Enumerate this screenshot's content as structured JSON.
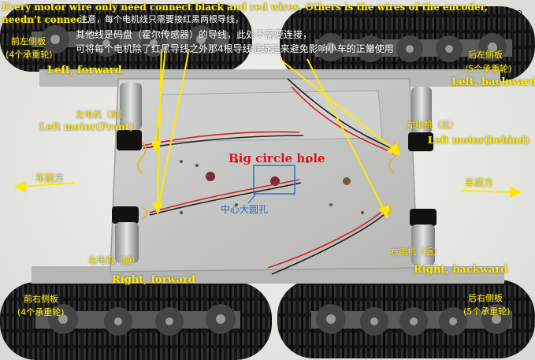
{
  "image_number": "039",
  "header": {
    "line1": "Every motor wire only need connect black and red wires. Others is the wires of the encoder,",
    "line2": "needn't connect.",
    "cn1": "注意，每个电机线只需要接红黑两根导线，",
    "cn2": "其他线是码盘（霍尔传感器）的导线，此处不需要连接，",
    "cn3": "可将每个电机除了红黑导线之外那4根导线缠绕起来避免影响小车的正常使用"
  },
  "labels": {
    "front_left_panel_cn": "前左侧板",
    "front_left_panel_sub": "(4个承重轮)",
    "left_forward": "Left, forward",
    "rear_left_panel_cn": "后左侧板",
    "rear_left_panel_sub": "(5个承重轮)",
    "left_backward": "Left, backward",
    "left_motor_front_cn": "左电机（前）",
    "left_motor_front": "Left motor(Front)",
    "left_motor_rear_cn": "左电机（后）",
    "left_motor_behind": "Left motor(behind)",
    "big_circle_hole": "Big circle hole",
    "center_hole_cn": "中心大圆孔",
    "car_front_cn": "车前方",
    "car_rear_cn": "车后方",
    "right_motor_front_cn": "右电机（前）",
    "right_forward": "Right, forward",
    "right_motor_rear_cn": "右电机（后）",
    "right_backward": "Right, backward",
    "front_right_panel_cn": "前右侧板",
    "front_right_panel_sub": "(4个承重轮)",
    "rear_right_panel_cn": "后右侧板",
    "rear_right_panel_sub": "(5个承重轮)"
  }
}
